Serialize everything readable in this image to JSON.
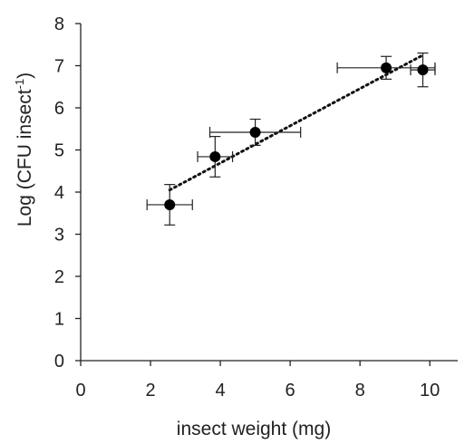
{
  "chart_data": {
    "type": "scatter",
    "xlabel": "insect weight (mg)",
    "ylabel": "Log (CFU insect",
    "ylabel_superscript": "-1",
    "ylabel_suffix": ")",
    "xlim": [
      0,
      10.8
    ],
    "ylim": [
      0,
      8
    ],
    "x_ticks": [
      "0",
      "2",
      "4",
      "6",
      "8",
      "10"
    ],
    "y_ticks": [
      "0",
      "1",
      "2",
      "3",
      "4",
      "5",
      "6",
      "7",
      "8"
    ],
    "grid": false,
    "points": [
      {
        "x": 2.55,
        "y": 3.7,
        "x_err": 0.65,
        "y_err": 0.48
      },
      {
        "x": 3.85,
        "y": 4.84,
        "x_err": 0.5,
        "y_err": 0.48
      },
      {
        "x": 5.0,
        "y": 5.42,
        "x_err": 1.3,
        "y_err": 0.31
      },
      {
        "x": 8.75,
        "y": 6.95,
        "x_err": 1.4,
        "y_err": 0.27
      },
      {
        "x": 9.8,
        "y": 6.9,
        "x_err": 0.35,
        "y_err": 0.4
      }
    ],
    "trendline": {
      "style": "dotted",
      "x": [
        2.55,
        9.8
      ],
      "y": [
        4.05,
        7.25
      ]
    },
    "marker_color": "#000000",
    "axis_color": "#222222"
  }
}
